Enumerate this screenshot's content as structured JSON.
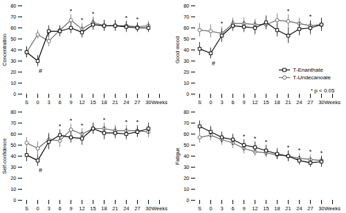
{
  "chart_data": [
    {
      "type": "line",
      "ylabel": "Concentration",
      "categories": [
        "S",
        "0",
        "3",
        "6",
        "9",
        "12",
        "15",
        "18",
        "21",
        "24",
        "27",
        "30",
        "Weeks"
      ],
      "ylim": [
        0,
        80
      ],
      "yticks": [
        0,
        10,
        20,
        30,
        40,
        50,
        60,
        70,
        80
      ],
      "legend": false,
      "series": [
        {
          "name": "T-Enanthate",
          "color": "#000000",
          "marker": "square",
          "values": [
            38,
            30,
            57,
            57,
            60,
            56,
            63,
            62,
            62,
            61,
            60,
            60,
            null
          ],
          "errors": [
            5,
            5,
            5,
            5,
            5,
            5,
            5,
            5,
            5,
            5,
            4,
            4,
            null
          ]
        },
        {
          "name": "T-Undecanoate",
          "color": "#666666",
          "marker": "circle",
          "values": [
            38,
            54,
            48,
            58,
            67,
            59,
            65,
            62,
            62,
            62,
            61,
            62,
            null
          ],
          "errors": [
            5,
            4,
            5,
            4,
            5,
            5,
            5,
            5,
            4,
            4,
            4,
            4,
            null
          ]
        }
      ],
      "annotations": [
        {
          "text": "*",
          "x": "9",
          "side": "above"
        },
        {
          "text": "*",
          "x": "12",
          "side": "above"
        },
        {
          "text": "*",
          "x": "15",
          "side": "above"
        },
        {
          "text": "*",
          "x": "24",
          "side": "above"
        },
        {
          "text": "*",
          "x": "27",
          "side": "above"
        },
        {
          "text": "#",
          "x": "0",
          "side": "below"
        }
      ]
    },
    {
      "type": "line",
      "ylabel": "Good mood",
      "categories": [
        "S",
        "0",
        "3",
        "6",
        "9",
        "12",
        "15",
        "18",
        "21",
        "24",
        "27",
        "30",
        "Weeks"
      ],
      "ylim": [
        0,
        80
      ],
      "yticks": [
        0,
        10,
        20,
        30,
        40,
        50,
        60,
        70,
        80
      ],
      "legend": "right",
      "series": [
        {
          "name": "T-Enanthate",
          "color": "#000000",
          "marker": "square",
          "values": [
            41,
            37,
            53,
            62,
            61,
            60,
            65,
            58,
            53,
            59,
            60,
            63,
            null
          ],
          "errors": [
            6,
            5,
            6,
            5,
            5,
            6,
            6,
            6,
            7,
            6,
            6,
            6,
            null
          ]
        },
        {
          "name": "T-Undecanoate",
          "color": "#666666",
          "marker": "circle",
          "values": [
            58,
            57,
            55,
            64,
            64,
            63,
            63,
            67,
            66,
            64,
            62,
            63,
            null
          ],
          "errors": [
            6,
            6,
            6,
            5,
            5,
            5,
            5,
            6,
            6,
            5,
            5,
            5,
            null
          ]
        }
      ],
      "annotations": [
        {
          "text": "*",
          "x": "3",
          "side": "above"
        },
        {
          "text": "*",
          "x": "21",
          "side": "above"
        },
        {
          "text": "*",
          "x": "27",
          "side": "above"
        },
        {
          "text": "#",
          "x": "0",
          "side": "below"
        },
        {
          "text": "* p < 0.05"
        }
      ]
    },
    {
      "type": "line",
      "ylabel": "Self-confidence",
      "categories": [
        "S",
        "0",
        "3",
        "6",
        "9",
        "12",
        "15",
        "18",
        "21",
        "24",
        "27",
        "30",
        "Weeks"
      ],
      "ylim": [
        0,
        80
      ],
      "yticks": [
        0,
        10,
        20,
        30,
        40,
        50,
        60,
        70,
        80
      ],
      "legend": false,
      "series": [
        {
          "name": "T-Enanthate",
          "color": "#000000",
          "marker": "square",
          "values": [
            41,
            36,
            53,
            59,
            57,
            56,
            65,
            61,
            61,
            60,
            62,
            65,
            null
          ],
          "errors": [
            6,
            5,
            7,
            5,
            5,
            6,
            5,
            6,
            5,
            5,
            5,
            5,
            null
          ]
        },
        {
          "name": "T-Undecanoate",
          "color": "#666666",
          "marker": "circle",
          "values": [
            52,
            47,
            55,
            54,
            64,
            60,
            65,
            65,
            63,
            63,
            63,
            62,
            null
          ],
          "errors": [
            5,
            6,
            6,
            6,
            5,
            5,
            5,
            5,
            5,
            5,
            5,
            5,
            null
          ]
        }
      ],
      "annotations": [
        {
          "text": "*",
          "x": "6",
          "side": "above"
        },
        {
          "text": "*",
          "x": "9",
          "side": "above"
        },
        {
          "text": "*",
          "x": "12",
          "side": "above"
        },
        {
          "text": "*",
          "x": "18",
          "side": "above"
        },
        {
          "text": "*",
          "x": "24",
          "side": "above"
        },
        {
          "text": "*",
          "x": "27",
          "side": "above"
        },
        {
          "text": "#",
          "x": "0",
          "side": "below"
        }
      ]
    },
    {
      "type": "line",
      "ylabel": "Fatigue",
      "categories": [
        "S",
        "0",
        "3",
        "6",
        "9",
        "12",
        "15",
        "18",
        "21",
        "24",
        "27",
        "30",
        "Weeks"
      ],
      "ylim": [
        0,
        80
      ],
      "yticks": [
        0,
        10,
        20,
        30,
        40,
        50,
        60,
        70,
        80
      ],
      "legend": false,
      "series": [
        {
          "name": "T-Enanthate",
          "color": "#000000",
          "marker": "square",
          "values": [
            67,
            62,
            57,
            55,
            50,
            48,
            45,
            42,
            40,
            36,
            34,
            35,
            null
          ],
          "errors": [
            5,
            5,
            5,
            5,
            5,
            5,
            5,
            5,
            5,
            4,
            4,
            5,
            null
          ]
        },
        {
          "name": "T-Undecanoate",
          "color": "#666666",
          "marker": "circle",
          "values": [
            57,
            59,
            55,
            52,
            47,
            44,
            43,
            41,
            40,
            38,
            37,
            36,
            null
          ],
          "errors": [
            5,
            5,
            5,
            5,
            5,
            4,
            4,
            4,
            4,
            4,
            4,
            4,
            null
          ]
        }
      ],
      "annotations": [
        {
          "text": "*",
          "x": "9",
          "side": "above"
        },
        {
          "text": "*",
          "x": "12",
          "side": "above"
        },
        {
          "text": "*",
          "x": "15",
          "side": "above"
        },
        {
          "text": "*",
          "x": "21",
          "side": "above"
        },
        {
          "text": "*",
          "x": "24",
          "side": "above"
        },
        {
          "text": "*",
          "x": "27",
          "side": "above"
        },
        {
          "text": "*",
          "x": "30",
          "side": "above"
        }
      ]
    }
  ]
}
